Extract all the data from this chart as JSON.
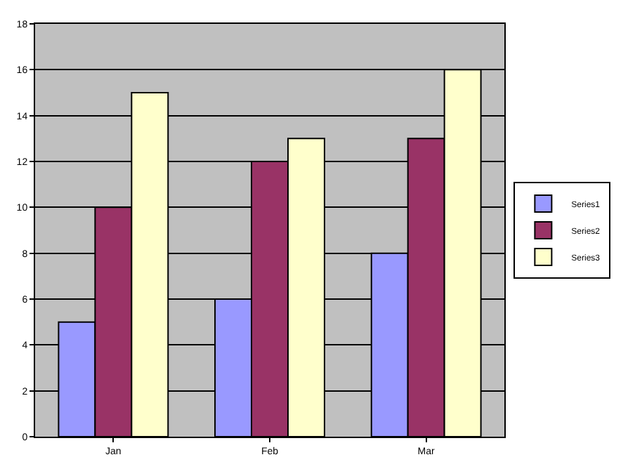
{
  "chart_data": {
    "type": "bar",
    "categories": [
      "Jan",
      "Feb",
      "Mar"
    ],
    "series": [
      {
        "name": "Series1",
        "color": "#9999ff",
        "values": [
          5,
          6,
          8
        ]
      },
      {
        "name": "Series2",
        "color": "#993366",
        "values": [
          10,
          12,
          13
        ]
      },
      {
        "name": "Series3",
        "color": "#ffffcc",
        "values": [
          15,
          13,
          16
        ]
      }
    ],
    "ylim": [
      0,
      18
    ],
    "yticks": [
      0,
      2,
      4,
      6,
      8,
      10,
      12,
      14,
      16,
      18
    ],
    "grid": "y",
    "legend": "right"
  }
}
